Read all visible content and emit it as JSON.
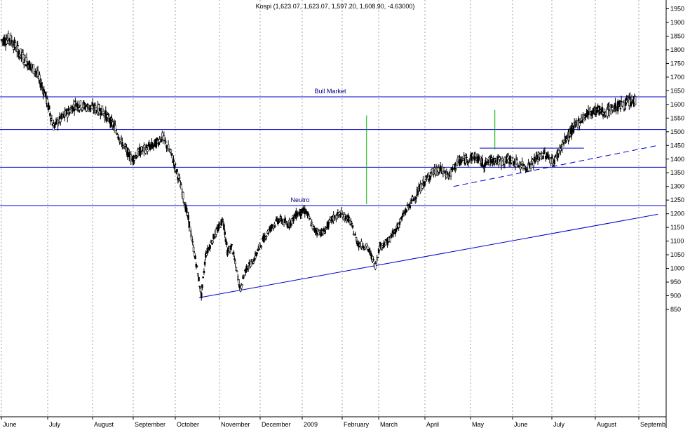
{
  "chart_data": {
    "type": "candlestick",
    "title": "Kospi (1,623.07, 1,623.07, 1,597.20, 1,608.90, -4.63000)",
    "ylim": [
      830,
      1965
    ],
    "y_ticks": [
      850,
      900,
      950,
      1000,
      1050,
      1100,
      1150,
      1200,
      1250,
      1300,
      1350,
      1400,
      1450,
      1500,
      1550,
      1600,
      1650,
      1700,
      1750,
      1800,
      1850,
      1900,
      1950
    ],
    "x_ticks": [
      "June",
      "July",
      "August",
      "September",
      "October",
      "November",
      "December",
      "2009",
      "February",
      "March",
      "April",
      "May",
      "June",
      "July",
      "August",
      "Septemb"
    ],
    "grid": true,
    "colors": {
      "horizontal_levels": "#0000cc",
      "trendlines": "#0000cc",
      "markers": "#00b000",
      "candles": "#000000",
      "grid": "#a0a0a0"
    },
    "horizontal_levels": [
      {
        "value": 1628,
        "label": "Bull Market"
      },
      {
        "value": 1508,
        "label": ""
      },
      {
        "value": 1370,
        "label": ""
      },
      {
        "value": 1230,
        "label": "Neutro"
      }
    ],
    "trendlines": [
      {
        "style": "solid",
        "from": [
          45.5,
          893
        ],
        "to": [
          151,
          1198
        ]
      },
      {
        "style": "dashed",
        "from": [
          104,
          1300
        ],
        "to": [
          151,
          1450
        ]
      }
    ],
    "short_levels": [
      {
        "value": 1440,
        "from_x": 110,
        "to_x": 134
      }
    ],
    "markers": [
      {
        "x": 84,
        "from": 1235,
        "to": 1560
      },
      {
        "x": 113.5,
        "from": 1435,
        "to": 1580
      }
    ],
    "price_anchors": [
      [
        0,
        1835
      ],
      [
        2,
        1840
      ],
      [
        5,
        1770
      ],
      [
        8,
        1720
      ],
      [
        10,
        1640
      ],
      [
        12,
        1520
      ],
      [
        14,
        1550
      ],
      [
        17,
        1600
      ],
      [
        20,
        1590
      ],
      [
        23,
        1580
      ],
      [
        26,
        1520
      ],
      [
        28,
        1450
      ],
      [
        30,
        1400
      ],
      [
        32,
        1430
      ],
      [
        35,
        1450
      ],
      [
        37,
        1480
      ],
      [
        39,
        1420
      ],
      [
        41,
        1320
      ],
      [
        43,
        1180
      ],
      [
        45,
        1000
      ],
      [
        46,
        900
      ],
      [
        47,
        1050
      ],
      [
        49,
        1120
      ],
      [
        51,
        1180
      ],
      [
        52,
        1060
      ],
      [
        53,
        1080
      ],
      [
        54,
        1000
      ],
      [
        55,
        920
      ],
      [
        56,
        990
      ],
      [
        58,
        1030
      ],
      [
        60,
        1100
      ],
      [
        62,
        1150
      ],
      [
        64,
        1180
      ],
      [
        66,
        1160
      ],
      [
        68,
        1200
      ],
      [
        70,
        1210
      ],
      [
        72,
        1140
      ],
      [
        74,
        1130
      ],
      [
        76,
        1180
      ],
      [
        78,
        1200
      ],
      [
        80,
        1180
      ],
      [
        82,
        1090
      ],
      [
        84,
        1080
      ],
      [
        85,
        1050
      ],
      [
        86,
        1010
      ],
      [
        87,
        1080
      ],
      [
        89,
        1100
      ],
      [
        91,
        1150
      ],
      [
        93,
        1210
      ],
      [
        95,
        1260
      ],
      [
        97,
        1310
      ],
      [
        99,
        1350
      ],
      [
        101,
        1360
      ],
      [
        103,
        1340
      ],
      [
        105,
        1390
      ],
      [
        107,
        1400
      ],
      [
        109,
        1410
      ],
      [
        111,
        1380
      ],
      [
        113,
        1400
      ],
      [
        115,
        1390
      ],
      [
        117,
        1400
      ],
      [
        119,
        1380
      ],
      [
        121,
        1370
      ],
      [
        123,
        1400
      ],
      [
        125,
        1420
      ],
      [
        127,
        1390
      ],
      [
        129,
        1450
      ],
      [
        131,
        1500
      ],
      [
        133,
        1540
      ],
      [
        135,
        1570
      ],
      [
        137,
        1580
      ],
      [
        139,
        1570
      ],
      [
        141,
        1590
      ],
      [
        143,
        1600
      ],
      [
        145,
        1610
      ],
      [
        146,
        1615
      ]
    ]
  }
}
